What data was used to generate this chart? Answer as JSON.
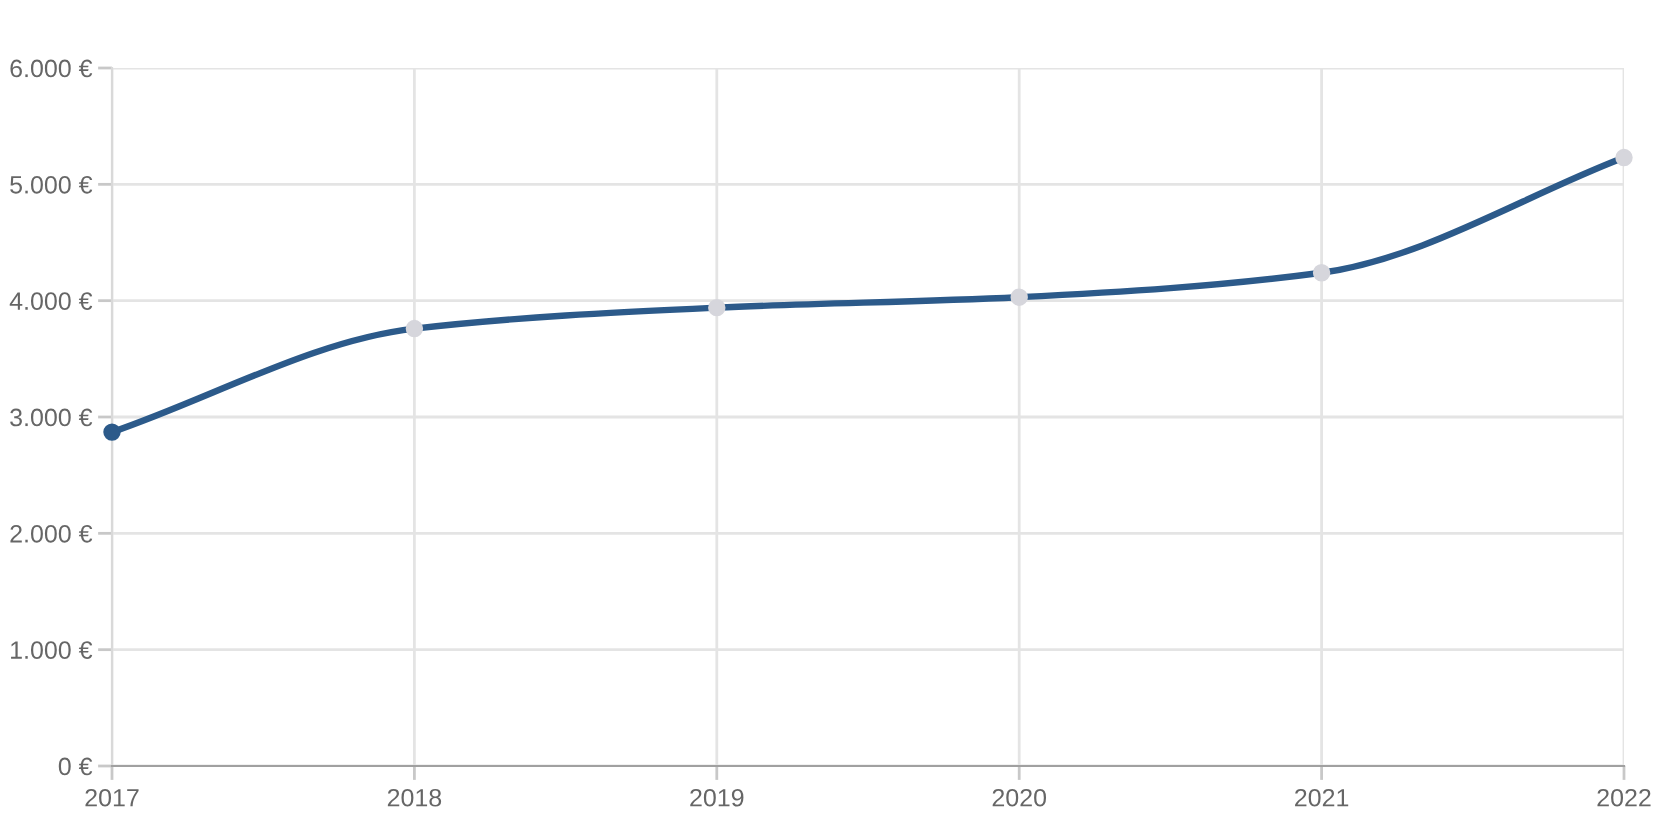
{
  "chart_data": {
    "type": "line",
    "categories": [
      "2017",
      "2018",
      "2019",
      "2020",
      "2021",
      "2022"
    ],
    "values": [
      2870,
      3760,
      3940,
      4030,
      4240,
      5230
    ],
    "color": "#2c5a8a",
    "colors": [
      "#2c5a8a",
      "#d6d6dc",
      "#d6d6dc",
      "#d6d6dc",
      "#d6d6dc",
      "#d6d6dc"
    ],
    "marker": "circle",
    "ylim": [
      0,
      6000
    ],
    "yticks": [
      {
        "value": 0,
        "label": "0 €"
      },
      {
        "value": 1000,
        "label": "1.000 €"
      },
      {
        "value": 2000,
        "label": "2.000 €"
      },
      {
        "value": 3000,
        "label": "3.000 €"
      },
      {
        "value": 4000,
        "label": "4.000 €"
      },
      {
        "value": 5000,
        "label": "5.000 €"
      },
      {
        "value": 6000,
        "label": "6.000 €"
      }
    ],
    "grid": true
  }
}
